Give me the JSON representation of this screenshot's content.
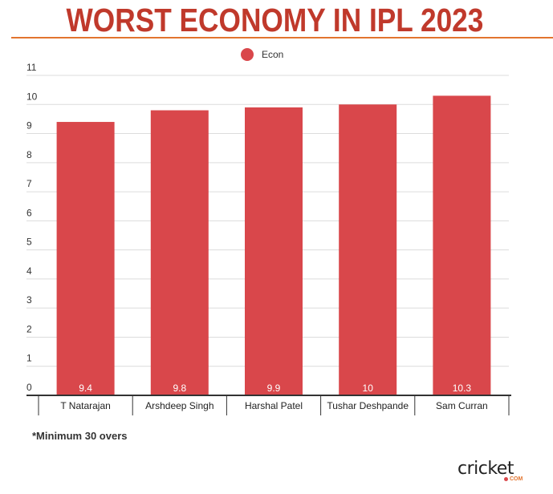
{
  "header": {
    "title": "WORST ECONOMY IN IPL 2023"
  },
  "footnote": "*Minimum 30 overs",
  "logo": {
    "main": "cricket",
    "sub": "COM"
  },
  "chart_data": {
    "type": "bar",
    "title": "WORST ECONOMY IN IPL 2023",
    "categories": [
      "T Natarajan",
      "Arshdeep Singh",
      "Harshal Patel",
      "Tushar Deshpande",
      "Sam Curran"
    ],
    "series": [
      {
        "name": "Econ",
        "values": [
          9.4,
          9.8,
          9.9,
          10,
          10.3
        ],
        "color": "#d9474b"
      }
    ],
    "data_labels": [
      "9.4",
      "9.8",
      "9.9",
      "10",
      "10.3"
    ],
    "xlabel": "",
    "ylabel": "",
    "ylim": [
      0,
      11
    ],
    "yticks": [
      0,
      1,
      2,
      3,
      4,
      5,
      6,
      7,
      8,
      9,
      10,
      11
    ],
    "grid": true,
    "legend": "top-center"
  }
}
